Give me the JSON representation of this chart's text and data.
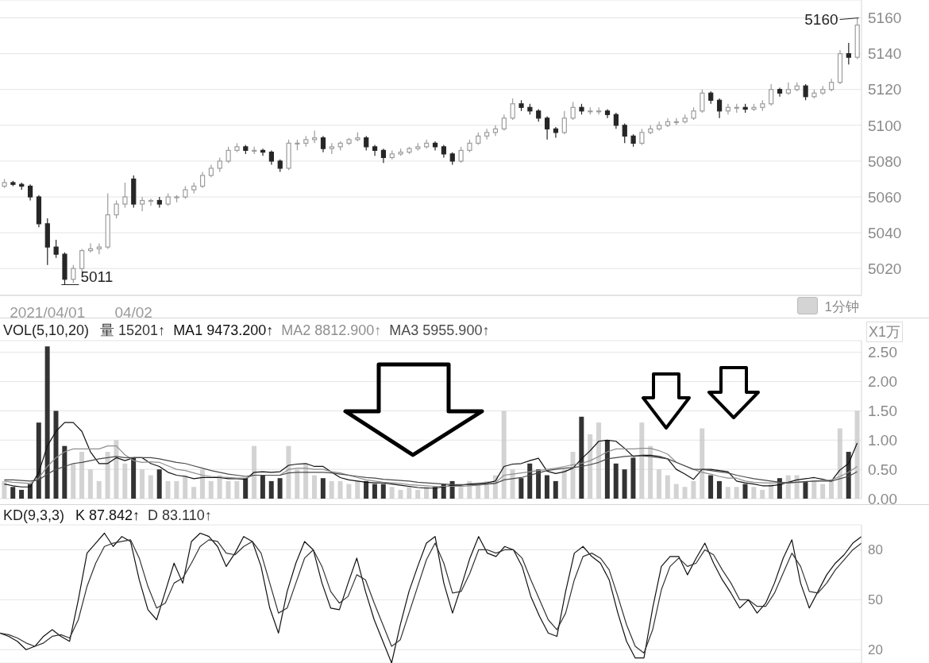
{
  "chart_data": [
    {
      "type": "candlestick",
      "categories": [
        null,
        null,
        null,
        null,
        null,
        "2021/04/01",
        null,
        null,
        null,
        null,
        null,
        null,
        null,
        null,
        null,
        "04/02",
        null,
        null,
        null,
        null,
        null,
        null,
        null,
        null,
        null,
        null,
        null,
        null,
        null,
        null,
        null,
        null,
        null,
        null,
        null,
        null,
        null,
        null,
        null,
        null,
        null,
        null,
        null,
        null,
        null,
        null,
        null,
        null,
        null,
        null,
        null,
        null,
        null,
        null,
        null,
        null,
        null,
        null,
        null,
        null,
        null,
        null,
        null,
        null,
        null,
        null,
        null,
        null,
        null,
        null,
        null,
        null,
        null,
        null,
        null,
        null,
        null,
        null,
        null,
        null,
        null,
        null,
        null,
        null,
        null,
        null,
        null,
        null,
        null,
        null,
        null,
        null,
        null,
        null,
        null,
        null,
        null,
        null,
        null,
        null
      ],
      "ohlc": [
        [
          5066,
          5070,
          5065,
          5068
        ],
        [
          5068,
          5069,
          5066,
          5067
        ],
        [
          5067,
          5068,
          5064,
          5066
        ],
        [
          5066,
          5067,
          5058,
          5060
        ],
        [
          5060,
          5061,
          5043,
          5045
        ],
        [
          5045,
          5048,
          5022,
          5032
        ],
        [
          5032,
          5036,
          5026,
          5028
        ],
        [
          5028,
          5029,
          5011,
          5014
        ],
        [
          5014,
          5022,
          5012,
          5020
        ],
        [
          5020,
          5031,
          5018,
          5030
        ],
        [
          5030,
          5034,
          5029,
          5031
        ],
        [
          5031,
          5034,
          5028,
          5032
        ],
        [
          5032,
          5062,
          5031,
          5050
        ],
        [
          5050,
          5058,
          5048,
          5056
        ],
        [
          5056,
          5068,
          5054,
          5060
        ],
        [
          5070,
          5072,
          5054,
          5056
        ],
        [
          5056,
          5060,
          5052,
          5058
        ],
        [
          5058,
          5059,
          5055,
          5058
        ],
        [
          5058,
          5060,
          5054,
          5056
        ],
        [
          5056,
          5062,
          5055,
          5060
        ],
        [
          5060,
          5061,
          5057,
          5060
        ],
        [
          5060,
          5066,
          5059,
          5064
        ],
        [
          5064,
          5068,
          5062,
          5066
        ],
        [
          5066,
          5074,
          5065,
          5072
        ],
        [
          5072,
          5078,
          5071,
          5076
        ],
        [
          5076,
          5082,
          5074,
          5080
        ],
        [
          5080,
          5088,
          5079,
          5086
        ],
        [
          5086,
          5090,
          5085,
          5088
        ],
        [
          5088,
          5089,
          5084,
          5086
        ],
        [
          5086,
          5088,
          5084,
          5086
        ],
        [
          5086,
          5087,
          5083,
          5085
        ],
        [
          5085,
          5086,
          5078,
          5080
        ],
        [
          5080,
          5081,
          5074,
          5076
        ],
        [
          5076,
          5092,
          5075,
          5090
        ],
        [
          5090,
          5092,
          5086,
          5090
        ],
        [
          5090,
          5094,
          5088,
          5092
        ],
        [
          5092,
          5097,
          5090,
          5093
        ],
        [
          5093,
          5094,
          5085,
          5087
        ],
        [
          5087,
          5090,
          5084,
          5088
        ],
        [
          5088,
          5091,
          5086,
          5090
        ],
        [
          5090,
          5093,
          5089,
          5092
        ],
        [
          5092,
          5096,
          5091,
          5093
        ],
        [
          5093,
          5094,
          5086,
          5088
        ],
        [
          5088,
          5089,
          5083,
          5086
        ],
        [
          5086,
          5087,
          5079,
          5082
        ],
        [
          5082,
          5086,
          5081,
          5084
        ],
        [
          5084,
          5087,
          5083,
          5085
        ],
        [
          5085,
          5088,
          5084,
          5087
        ],
        [
          5087,
          5090,
          5086,
          5088
        ],
        [
          5088,
          5092,
          5087,
          5090
        ],
        [
          5090,
          5091,
          5086,
          5088
        ],
        [
          5088,
          5089,
          5082,
          5084
        ],
        [
          5084,
          5085,
          5078,
          5080
        ],
        [
          5080,
          5088,
          5079,
          5086
        ],
        [
          5086,
          5092,
          5085,
          5090
        ],
        [
          5090,
          5096,
          5089,
          5094
        ],
        [
          5094,
          5098,
          5092,
          5096
        ],
        [
          5096,
          5100,
          5094,
          5098
        ],
        [
          5098,
          5106,
          5097,
          5104
        ],
        [
          5104,
          5115,
          5103,
          5112
        ],
        [
          5112,
          5114,
          5108,
          5110
        ],
        [
          5110,
          5112,
          5106,
          5108
        ],
        [
          5108,
          5109,
          5102,
          5104
        ],
        [
          5104,
          5105,
          5092,
          5098
        ],
        [
          5098,
          5099,
          5093,
          5096
        ],
        [
          5096,
          5108,
          5095,
          5104
        ],
        [
          5104,
          5113,
          5103,
          5110
        ],
        [
          5110,
          5112,
          5106,
          5108
        ],
        [
          5108,
          5110,
          5106,
          5108
        ],
        [
          5108,
          5110,
          5106,
          5108
        ],
        [
          5108,
          5109,
          5104,
          5106
        ],
        [
          5106,
          5107,
          5098,
          5100
        ],
        [
          5100,
          5101,
          5090,
          5094
        ],
        [
          5094,
          5095,
          5088,
          5090
        ],
        [
          5090,
          5098,
          5089,
          5096
        ],
        [
          5096,
          5100,
          5095,
          5098
        ],
        [
          5098,
          5102,
          5097,
          5100
        ],
        [
          5100,
          5104,
          5099,
          5102
        ],
        [
          5102,
          5104,
          5100,
          5102
        ],
        [
          5102,
          5106,
          5101,
          5104
        ],
        [
          5104,
          5110,
          5103,
          5108
        ],
        [
          5108,
          5120,
          5107,
          5118
        ],
        [
          5118,
          5119,
          5112,
          5114
        ],
        [
          5114,
          5115,
          5104,
          5108
        ],
        [
          5108,
          5112,
          5106,
          5110
        ],
        [
          5110,
          5112,
          5107,
          5110
        ],
        [
          5110,
          5112,
          5107,
          5109
        ],
        [
          5109,
          5112,
          5108,
          5110
        ],
        [
          5110,
          5114,
          5108,
          5112
        ],
        [
          5112,
          5123,
          5111,
          5120
        ],
        [
          5120,
          5121,
          5116,
          5118
        ],
        [
          5118,
          5124,
          5117,
          5120
        ],
        [
          5120,
          5124,
          5119,
          5122
        ],
        [
          5122,
          5123,
          5114,
          5116
        ],
        [
          5116,
          5120,
          5115,
          5118
        ],
        [
          5118,
          5122,
          5117,
          5120
        ],
        [
          5120,
          5126,
          5119,
          5124
        ],
        [
          5124,
          5142,
          5123,
          5140
        ],
        [
          5140,
          5146,
          5134,
          5138
        ],
        [
          5138,
          5160,
          5137,
          5156
        ]
      ],
      "colors": [
        "#9c9c9c",
        "#262626",
        "#262626",
        "#262626",
        "#262626",
        "#262626",
        "#262626",
        "#262626",
        "#9c9c9c",
        "#9c9c9c",
        "#9c9c9c",
        "#9c9c9c",
        "#9c9c9c",
        "#9c9c9c",
        "#9c9c9c",
        "#262626",
        "#9c9c9c",
        "#9c9c9c",
        "#262626",
        "#9c9c9c",
        "#9c9c9c",
        "#9c9c9c",
        "#9c9c9c",
        "#9c9c9c",
        "#9c9c9c",
        "#9c9c9c",
        "#9c9c9c",
        "#9c9c9c",
        "#262626",
        "#9c9c9c",
        "#262626",
        "#262626",
        "#262626",
        "#9c9c9c",
        "#9c9c9c",
        "#9c9c9c",
        "#9c9c9c",
        "#262626",
        "#9c9c9c",
        "#9c9c9c",
        "#9c9c9c",
        "#9c9c9c",
        "#262626",
        "#262626",
        "#262626",
        "#9c9c9c",
        "#9c9c9c",
        "#9c9c9c",
        "#9c9c9c",
        "#9c9c9c",
        "#262626",
        "#262626",
        "#262626",
        "#9c9c9c",
        "#9c9c9c",
        "#9c9c9c",
        "#9c9c9c",
        "#9c9c9c",
        "#9c9c9c",
        "#9c9c9c",
        "#262626",
        "#262626",
        "#262626",
        "#262626",
        "#262626",
        "#9c9c9c",
        "#9c9c9c",
        "#262626",
        "#9c9c9c",
        "#9c9c9c",
        "#262626",
        "#262626",
        "#262626",
        "#262626",
        "#9c9c9c",
        "#9c9c9c",
        "#9c9c9c",
        "#9c9c9c",
        "#9c9c9c",
        "#9c9c9c",
        "#9c9c9c",
        "#9c9c9c",
        "#262626",
        "#262626",
        "#9c9c9c",
        "#9c9c9c",
        "#262626",
        "#9c9c9c",
        "#9c9c9c",
        "#9c9c9c",
        "#262626",
        "#9c9c9c",
        "#9c9c9c",
        "#262626",
        "#9c9c9c",
        "#9c9c9c",
        "#9c9c9c",
        "#9c9c9c",
        "#262626",
        "#9c9c9c"
      ],
      "ylim": [
        5005,
        5170
      ],
      "yticks": [
        5020,
        5040,
        5060,
        5080,
        5100,
        5120,
        5140,
        5160
      ],
      "grid": "y",
      "annotations": [
        "5011",
        "5160",
        "1分钟"
      ]
    },
    {
      "type": "bar",
      "title": "VOL(5,10,20)",
      "ylabel": "X1万",
      "categories": [
        null,
        null,
        null,
        null,
        null,
        null,
        null,
        null,
        null,
        null,
        null,
        null,
        null,
        null,
        null,
        null,
        null,
        null,
        null,
        null,
        null,
        null,
        null,
        null,
        null,
        null,
        null,
        null,
        null,
        null,
        null,
        null,
        null,
        null,
        null,
        null,
        null,
        null,
        null,
        null,
        null,
        null,
        null,
        null,
        null,
        null,
        null,
        null,
        null,
        null,
        null,
        null,
        null,
        null,
        null,
        null,
        null,
        null,
        null,
        null,
        null,
        null,
        null,
        null,
        null,
        null,
        null,
        null,
        null,
        null,
        null,
        null,
        null,
        null,
        null,
        null,
        null,
        null,
        null,
        null,
        null,
        null,
        null,
        null,
        null,
        null,
        null,
        null,
        null,
        null,
        null,
        null,
        null,
        null,
        null,
        null,
        null,
        null,
        null,
        null
      ],
      "series": [
        {
          "type": "bar",
          "name": "量 15201↑",
          "color": "#333333",
          "values": [
            0.3,
            0.2,
            0.15,
            0.25,
            1.3,
            2.6,
            1.5,
            0.9,
            0.6,
            0.8,
            0.5,
            0.3,
            0.8,
            1.0,
            0.6,
            0.7,
            0.5,
            0.4,
            0.5,
            0.3,
            0.3,
            0.4,
            0.2,
            0.5,
            0.3,
            0.4,
            0.3,
            0.3,
            0.35,
            0.9,
            0.4,
            0.3,
            0.35,
            0.9,
            0.5,
            0.6,
            0.4,
            0.35,
            0.3,
            0.3,
            0.25,
            0.3,
            0.3,
            0.25,
            0.25,
            0.2,
            0.15,
            0.2,
            0.15,
            0.2,
            0.2,
            0.25,
            0.3,
            0.2,
            0.3,
            0.25,
            0.3,
            0.4,
            1.5,
            0.5,
            0.35,
            0.6,
            0.5,
            0.4,
            0.3,
            0.5,
            0.8,
            1.4,
            1.1,
            1.3,
            1.0,
            0.6,
            0.5,
            0.7,
            1.3,
            0.9,
            0.5,
            0.4,
            0.25,
            0.2,
            0.3,
            1.2,
            0.4,
            0.3,
            0.2,
            0.2,
            0.25,
            0.2,
            0.15,
            0.25,
            0.35,
            0.4,
            0.4,
            0.3,
            0.3,
            0.25,
            0.3,
            1.2,
            0.8,
            1.5
          ],
          "colors": [
            "#c4c4c4",
            "#333333",
            "#333333",
            "#333333",
            "#333333",
            "#333333",
            "#333333",
            "#333333",
            "#c4c4c4",
            "#c4c4c4",
            "#c4c4c4",
            "#c4c4c4",
            "#c4c4c4",
            "#c4c4c4",
            "#c4c4c4",
            "#333333",
            "#c4c4c4",
            "#c4c4c4",
            "#333333",
            "#c4c4c4",
            "#c4c4c4",
            "#c4c4c4",
            "#c4c4c4",
            "#c4c4c4",
            "#c4c4c4",
            "#c4c4c4",
            "#c4c4c4",
            "#c4c4c4",
            "#333333",
            "#c4c4c4",
            "#333333",
            "#333333",
            "#333333",
            "#c4c4c4",
            "#c4c4c4",
            "#c4c4c4",
            "#c4c4c4",
            "#333333",
            "#c4c4c4",
            "#c4c4c4",
            "#c4c4c4",
            "#c4c4c4",
            "#333333",
            "#333333",
            "#333333",
            "#c4c4c4",
            "#c4c4c4",
            "#c4c4c4",
            "#c4c4c4",
            "#c4c4c4",
            "#333333",
            "#333333",
            "#333333",
            "#c4c4c4",
            "#c4c4c4",
            "#c4c4c4",
            "#c4c4c4",
            "#c4c4c4",
            "#c4c4c4",
            "#c4c4c4",
            "#333333",
            "#333333",
            "#333333",
            "#333333",
            "#333333",
            "#c4c4c4",
            "#c4c4c4",
            "#333333",
            "#c4c4c4",
            "#c4c4c4",
            "#333333",
            "#333333",
            "#333333",
            "#333333",
            "#c4c4c4",
            "#c4c4c4",
            "#c4c4c4",
            "#c4c4c4",
            "#c4c4c4",
            "#c4c4c4",
            "#c4c4c4",
            "#c4c4c4",
            "#333333",
            "#333333",
            "#c4c4c4",
            "#c4c4c4",
            "#333333",
            "#c4c4c4",
            "#c4c4c4",
            "#c4c4c4",
            "#333333",
            "#c4c4c4",
            "#c4c4c4",
            "#333333",
            "#c4c4c4",
            "#c4c4c4",
            "#c4c4c4",
            "#c4c4c4",
            "#333333",
            "#c4c4c4"
          ]
        },
        {
          "type": "line",
          "name": "MA1 9473.200↑",
          "color": "#111111",
          "values": [
            0.25,
            0.22,
            0.2,
            0.2,
            0.45,
            0.9,
            1.15,
            1.3,
            1.3,
            1.15,
            0.8,
            0.6,
            0.6,
            0.7,
            0.65,
            0.7,
            0.7,
            0.6,
            0.55,
            0.45,
            0.4,
            0.38,
            0.34,
            0.36,
            0.36,
            0.36,
            0.34,
            0.34,
            0.33,
            0.45,
            0.46,
            0.45,
            0.46,
            0.57,
            0.59,
            0.6,
            0.55,
            0.55,
            0.45,
            0.36,
            0.32,
            0.3,
            0.28,
            0.27,
            0.27,
            0.25,
            0.23,
            0.21,
            0.19,
            0.18,
            0.18,
            0.2,
            0.23,
            0.23,
            0.25,
            0.26,
            0.27,
            0.3,
            0.55,
            0.59,
            0.6,
            0.65,
            0.69,
            0.47,
            0.43,
            0.46,
            0.52,
            0.68,
            0.82,
            0.98,
            1.0,
            0.98,
            0.86,
            0.72,
            0.74,
            0.74,
            0.72,
            0.68,
            0.5,
            0.42,
            0.33,
            0.5,
            0.5,
            0.48,
            0.46,
            0.3,
            0.27,
            0.25,
            0.22,
            0.22,
            0.24,
            0.28,
            0.32,
            0.34,
            0.36,
            0.33,
            0.3,
            0.49,
            0.6,
            0.95
          ]
        },
        {
          "type": "line",
          "name": "MA2 8812.900↑",
          "color": "#8f8f8f",
          "values": [
            0.3,
            0.28,
            0.27,
            0.26,
            0.35,
            0.55,
            0.7,
            0.8,
            0.85,
            0.85,
            0.85,
            0.85,
            0.9,
            0.9,
            0.75,
            0.65,
            0.62,
            0.63,
            0.62,
            0.56,
            0.5,
            0.48,
            0.44,
            0.4,
            0.38,
            0.37,
            0.36,
            0.35,
            0.35,
            0.4,
            0.4,
            0.4,
            0.4,
            0.5,
            0.52,
            0.52,
            0.5,
            0.5,
            0.46,
            0.44,
            0.4,
            0.36,
            0.32,
            0.3,
            0.28,
            0.27,
            0.26,
            0.24,
            0.23,
            0.22,
            0.21,
            0.21,
            0.21,
            0.21,
            0.22,
            0.23,
            0.25,
            0.27,
            0.4,
            0.42,
            0.44,
            0.46,
            0.48,
            0.5,
            0.52,
            0.55,
            0.58,
            0.6,
            0.65,
            0.72,
            0.8,
            0.85,
            0.85,
            0.85,
            0.86,
            0.86,
            0.82,
            0.76,
            0.62,
            0.56,
            0.5,
            0.45,
            0.42,
            0.38,
            0.35,
            0.35,
            0.3,
            0.28,
            0.27,
            0.27,
            0.27,
            0.27,
            0.28,
            0.29,
            0.3,
            0.31,
            0.32,
            0.38,
            0.45,
            0.55
          ]
        },
        {
          "type": "line",
          "name": "MA3 5955.900↑",
          "color": "#4a4a4a",
          "values": [
            0.32,
            0.32,
            0.31,
            0.3,
            0.32,
            0.42,
            0.5,
            0.55,
            0.6,
            0.62,
            0.65,
            0.68,
            0.7,
            0.72,
            0.7,
            0.7,
            0.7,
            0.7,
            0.68,
            0.65,
            0.62,
            0.6,
            0.56,
            0.52,
            0.48,
            0.45,
            0.42,
            0.4,
            0.38,
            0.4,
            0.4,
            0.4,
            0.4,
            0.44,
            0.45,
            0.45,
            0.45,
            0.45,
            0.44,
            0.42,
            0.4,
            0.38,
            0.36,
            0.35,
            0.33,
            0.32,
            0.31,
            0.3,
            0.28,
            0.27,
            0.26,
            0.25,
            0.24,
            0.24,
            0.24,
            0.24,
            0.25,
            0.26,
            0.32,
            0.34,
            0.36,
            0.4,
            0.44,
            0.48,
            0.5,
            0.52,
            0.53,
            0.55,
            0.58,
            0.62,
            0.68,
            0.7,
            0.72,
            0.73,
            0.73,
            0.72,
            0.7,
            0.68,
            0.62,
            0.56,
            0.5,
            0.5,
            0.48,
            0.46,
            0.44,
            0.4,
            0.37,
            0.34,
            0.32,
            0.3,
            0.28,
            0.27,
            0.28,
            0.29,
            0.3,
            0.3,
            0.3,
            0.34,
            0.38,
            0.46
          ]
        }
      ],
      "ylim": [
        0,
        2.7
      ],
      "yticks": [
        {
          "value": 0,
          "label": "0.00"
        },
        {
          "value": 0.5,
          "label": "0.50"
        },
        {
          "value": 1,
          "label": "1.00"
        },
        {
          "value": 1.5,
          "label": "1.50"
        },
        {
          "value": 2,
          "label": "2.00"
        },
        {
          "value": 2.5,
          "label": "2.50"
        }
      ],
      "grid": "y",
      "legend": "top left",
      "tick_labels": "y"
    },
    {
      "type": "line",
      "title": "KD(9,3,3)",
      "categories": [
        null,
        null,
        null,
        null,
        null,
        null,
        null,
        null,
        null,
        null,
        null,
        null,
        null,
        null,
        null,
        null,
        null,
        null,
        null,
        null,
        null,
        null,
        null,
        null,
        null,
        null,
        null,
        null,
        null,
        null,
        null,
        null,
        null,
        null,
        null,
        null,
        null,
        null,
        null,
        null,
        null,
        null,
        null,
        null,
        null,
        null,
        null,
        null,
        null,
        null,
        null,
        null,
        null,
        null,
        null,
        null,
        null,
        null,
        null,
        null,
        null,
        null,
        null,
        null,
        null,
        null,
        null,
        null,
        null,
        null,
        null,
        null,
        null,
        null,
        null,
        null,
        null,
        null,
        null,
        null,
        null,
        null,
        null,
        null,
        null,
        null,
        null,
        null,
        null,
        null,
        null,
        null,
        null,
        null,
        null,
        null,
        null,
        null,
        null,
        null
      ],
      "series": [
        {
          "name": "K 87.842↑",
          "color": "#111111",
          "values": [
            30,
            28,
            25,
            20,
            22,
            28,
            32,
            28,
            25,
            50,
            78,
            84,
            90,
            82,
            88,
            85,
            62,
            44,
            38,
            55,
            72,
            60,
            85,
            90,
            88,
            82,
            70,
            78,
            88,
            85,
            70,
            45,
            30,
            55,
            72,
            85,
            80,
            60,
            45,
            44,
            60,
            75,
            55,
            38,
            25,
            12,
            35,
            55,
            70,
            84,
            88,
            60,
            42,
            58,
            75,
            88,
            78,
            76,
            82,
            80,
            70,
            52,
            40,
            30,
            28,
            55,
            78,
            82,
            76,
            72,
            62,
            42,
            25,
            15,
            15,
            45,
            70,
            76,
            76,
            65,
            75,
            84,
            72,
            62,
            54,
            45,
            50,
            42,
            48,
            60,
            75,
            86,
            60,
            45,
            55,
            65,
            72,
            77,
            84,
            88
          ]
        },
        {
          "name": "D 83.110↑",
          "color": "#333333",
          "values": [
            30,
            29,
            27,
            24,
            22,
            24,
            28,
            29,
            27,
            38,
            58,
            72,
            82,
            84,
            85,
            86,
            75,
            58,
            45,
            48,
            60,
            63,
            72,
            82,
            86,
            85,
            78,
            77,
            82,
            85,
            78,
            60,
            42,
            45,
            60,
            75,
            80,
            70,
            55,
            48,
            52,
            65,
            62,
            48,
            35,
            22,
            26,
            42,
            58,
            74,
            84,
            72,
            54,
            55,
            66,
            80,
            80,
            78,
            80,
            80,
            75,
            62,
            50,
            38,
            32,
            42,
            62,
            76,
            78,
            75,
            68,
            52,
            35,
            22,
            18,
            32,
            56,
            70,
            75,
            70,
            72,
            80,
            77,
            68,
            60,
            50,
            50,
            46,
            46,
            54,
            66,
            78,
            70,
            55,
            54,
            60,
            68,
            74,
            80,
            84
          ]
        }
      ],
      "ylim": [
        12,
        95
      ],
      "yticks": [
        20,
        50,
        80
      ],
      "grid": "y",
      "legend": "top left",
      "tick_labels": "y"
    }
  ]
}
